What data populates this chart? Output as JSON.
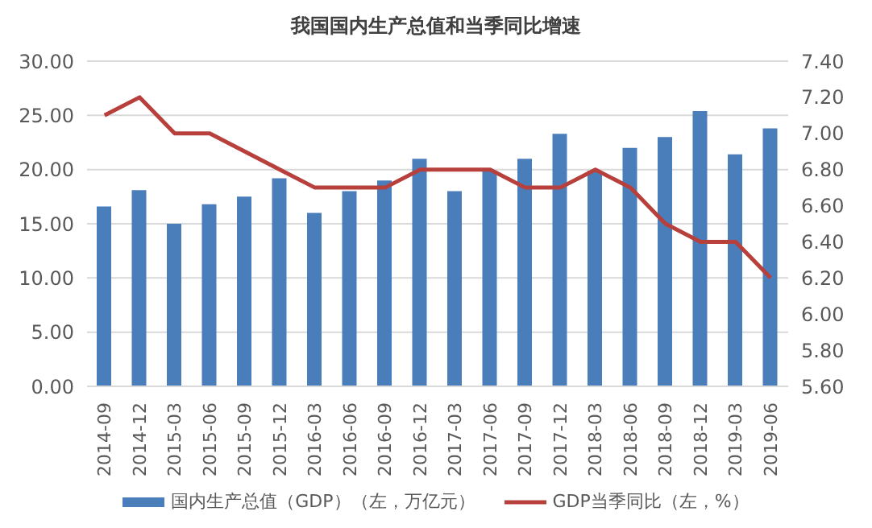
{
  "chart_data": {
    "type": "bar",
    "title": "我国国内生产总值和当季同比增速",
    "categories": [
      "2014-09",
      "2014-12",
      "2015-03",
      "2015-06",
      "2015-09",
      "2015-12",
      "2016-03",
      "2016-06",
      "2016-09",
      "2016-12",
      "2017-03",
      "2017-06",
      "2017-09",
      "2017-12",
      "2018-03",
      "2018-06",
      "2018-09",
      "2018-12",
      "2019-03",
      "2019-06"
    ],
    "series": [
      {
        "name": "国内生产总值（GDP）（左，万亿元）",
        "color": "#4a7ebb",
        "values": [
          16.6,
          18.1,
          15.0,
          16.8,
          17.5,
          19.2,
          16.0,
          18.0,
          19.0,
          21.0,
          18.0,
          19.9,
          21.0,
          23.3,
          19.9,
          22.0,
          23.0,
          25.4,
          21.4,
          23.8
        ]
      },
      {
        "name": "GDP当季同比（左，%）",
        "type": "line",
        "axis": "y2",
        "color": "#b8403c",
        "marker": "none",
        "values": [
          7.1,
          7.2,
          7.0,
          7.0,
          6.9,
          6.8,
          6.7,
          6.7,
          6.7,
          6.8,
          6.8,
          6.8,
          6.7,
          6.7,
          6.8,
          6.7,
          6.5,
          6.4,
          6.4,
          6.2
        ]
      }
    ],
    "ylim": [
      0,
      30
    ],
    "yticks": [
      {
        "value": 0,
        "label": "0.00"
      },
      {
        "value": 5,
        "label": "5.00"
      },
      {
        "value": 10,
        "label": "10.00"
      },
      {
        "value": 15,
        "label": "15.00"
      },
      {
        "value": 20,
        "label": "20.00"
      },
      {
        "value": 25,
        "label": "25.00"
      },
      {
        "value": 30,
        "label": "30.00"
      }
    ],
    "y2lim": [
      5.6,
      7.4
    ],
    "y2ticks": [
      {
        "value": 5.6,
        "label": "5.60"
      },
      {
        "value": 5.8,
        "label": "5.80"
      },
      {
        "value": 6.0,
        "label": "6.00"
      },
      {
        "value": 6.2,
        "label": "6.20"
      },
      {
        "value": 6.4,
        "label": "6.40"
      },
      {
        "value": 6.6,
        "label": "6.60"
      },
      {
        "value": 6.8,
        "label": "6.80"
      },
      {
        "value": 7.0,
        "label": "7.00"
      },
      {
        "value": 7.2,
        "label": "7.20"
      },
      {
        "value": 7.4,
        "label": "7.40"
      }
    ],
    "grid": "y",
    "legend": "bottom"
  }
}
